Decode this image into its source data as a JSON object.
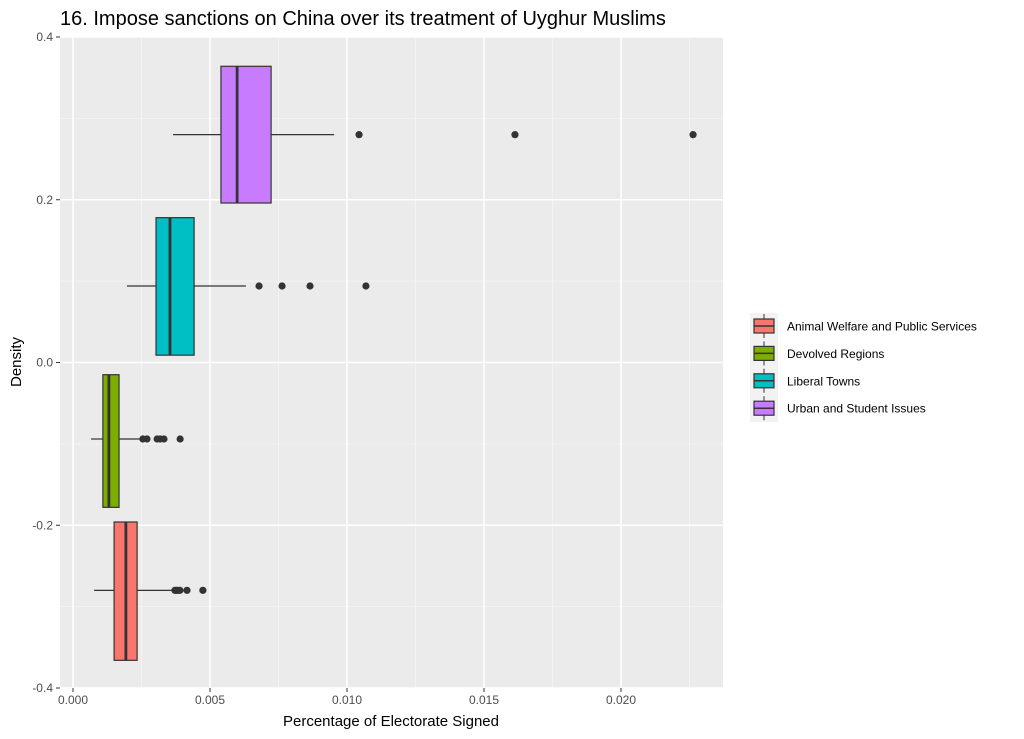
{
  "chart_data": {
    "type": "boxplot",
    "title": "16. Impose sanctions on China over its treatment of Uyghur Muslims",
    "xlabel": "Percentage of Electorate Signed",
    "ylabel": "Density",
    "xlim": [
      -0.0005,
      0.0238
    ],
    "ylim": [
      -0.4,
      0.4
    ],
    "x_ticks": [
      0,
      0.005,
      0.01,
      0.015,
      0.02
    ],
    "x_tick_labels": [
      "0.000",
      "0.005",
      "0.010",
      "0.015",
      "0.020"
    ],
    "y_ticks": [
      -0.4,
      -0.2,
      0,
      0.2,
      0.4
    ],
    "y_tick_labels": [
      "-0.4",
      "-0.2",
      "0.0",
      "0.2",
      "0.4"
    ],
    "grid": true,
    "legend_position": "right",
    "series": [
      {
        "name": "Animal Welfare and Public Services",
        "color": "#F8766D",
        "y_center": -0.28,
        "y_min": -0.366,
        "y_max": -0.196,
        "whisker_low": 0.00077,
        "q1": 0.0015,
        "median": 0.00193,
        "q3": 0.00234,
        "whisker_high": 0.00361,
        "outliers": [
          0.00372,
          0.00378,
          0.00383,
          0.0039,
          0.00416,
          0.00474
        ]
      },
      {
        "name": "Devolved Regions",
        "color": "#7CAE00",
        "y_center": -0.094,
        "y_min": -0.178,
        "y_max": -0.015,
        "whisker_low": 0.00066,
        "q1": 0.00109,
        "median": 0.00131,
        "q3": 0.00168,
        "whisker_high": 0.00248,
        "outliers": [
          0.00255,
          0.0027,
          0.00307,
          0.00318,
          0.00332,
          0.00391
        ]
      },
      {
        "name": "Liberal Towns",
        "color": "#00BFC4",
        "y_center": 0.094,
        "y_min": 0.009,
        "y_max": 0.178,
        "whisker_low": 0.00197,
        "q1": 0.00303,
        "median": 0.00354,
        "q3": 0.00442,
        "whisker_high": 0.00631,
        "outliers": [
          0.00679,
          0.00763,
          0.00865,
          0.01069
        ]
      },
      {
        "name": "Urban and Student Issues",
        "color": "#C77CFF",
        "y_center": 0.28,
        "y_min": 0.196,
        "y_max": 0.364,
        "whisker_low": 0.00365,
        "q1": 0.0054,
        "median": 0.00599,
        "q3": 0.00723,
        "whisker_high": 0.00953,
        "outliers": [
          0.01044,
          0.01613,
          0.02263
        ]
      }
    ]
  }
}
